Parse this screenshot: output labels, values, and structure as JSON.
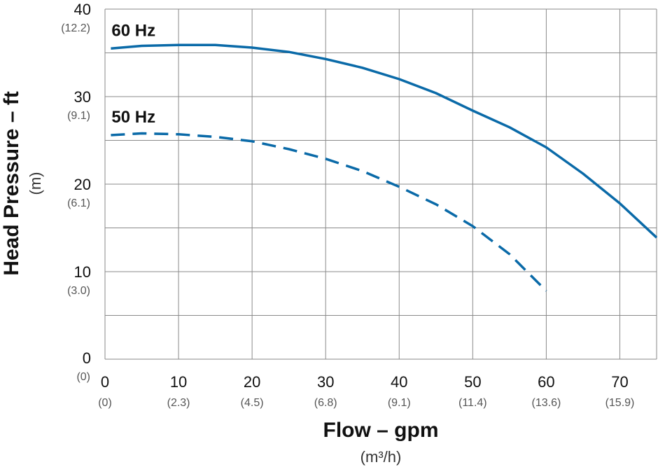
{
  "chart_data": {
    "type": "line",
    "xlabel": "Flow – gpm",
    "xlabel_unit": "(m³/h)",
    "ylabel": "Head Pressure – ft",
    "ylabel_unit": "(m)",
    "xlim": [
      0,
      75
    ],
    "ylim": [
      0,
      40
    ],
    "grid": true,
    "x_ticks": [
      {
        "value": 0,
        "label": "0",
        "sub": "(0)"
      },
      {
        "value": 10,
        "label": "10",
        "sub": "(2.3)"
      },
      {
        "value": 20,
        "label": "20",
        "sub": "(4.5)"
      },
      {
        "value": 30,
        "label": "30",
        "sub": "(6.8)"
      },
      {
        "value": 40,
        "label": "40",
        "sub": "(9.1)"
      },
      {
        "value": 50,
        "label": "50",
        "sub": "(11.4)"
      },
      {
        "value": 60,
        "label": "60",
        "sub": "(13.6)"
      },
      {
        "value": 70,
        "label": "70",
        "sub": "(15.9)"
      }
    ],
    "y_ticks": [
      {
        "value": 0,
        "label": "0",
        "sub": "(0)"
      },
      {
        "value": 10,
        "label": "10",
        "sub": "(3.0)"
      },
      {
        "value": 20,
        "label": "20",
        "sub": "(6.1)"
      },
      {
        "value": 30,
        "label": "30",
        "sub": "(9.1)"
      },
      {
        "value": 40,
        "label": "40",
        "sub": "(12.2)"
      }
    ],
    "y_minor_gridlines": [
      5,
      15,
      25,
      35
    ],
    "series": [
      {
        "name": "60 Hz",
        "style": "solid",
        "color": "#0a6aa8",
        "x": [
          0.8,
          5,
          10,
          15,
          20,
          25,
          30,
          35,
          40,
          45,
          50,
          55,
          60,
          65,
          70,
          75
        ],
        "y": [
          35.5,
          35.8,
          35.9,
          35.9,
          35.6,
          35.1,
          34.3,
          33.3,
          32.0,
          30.4,
          28.4,
          26.5,
          24.2,
          21.2,
          17.8,
          13.9
        ]
      },
      {
        "name": "50 Hz",
        "style": "dashed",
        "color": "#0a6aa8",
        "x": [
          0.8,
          5,
          10,
          15,
          20,
          25,
          30,
          35,
          40,
          45,
          50,
          55,
          60
        ],
        "y": [
          25.6,
          25.8,
          25.7,
          25.4,
          24.9,
          24.0,
          22.9,
          21.5,
          19.7,
          17.7,
          15.2,
          12.0,
          7.8
        ]
      }
    ]
  }
}
